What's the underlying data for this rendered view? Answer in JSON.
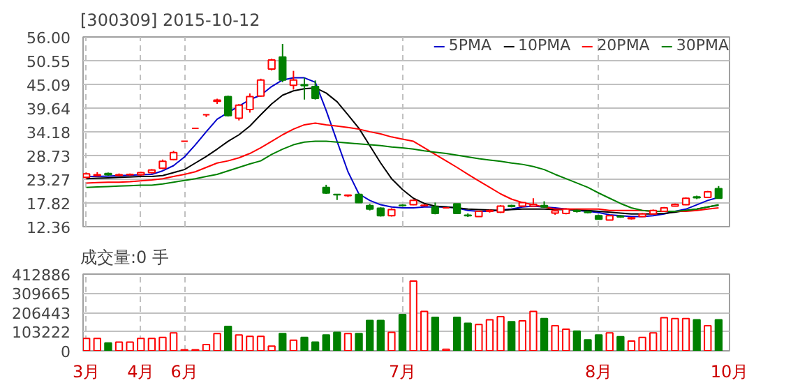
{
  "chart_data": [
    {
      "type": "candlestick",
      "title": "[300309] 2015-10-12",
      "ohlc": [
        [
          23.7,
          24.8,
          23.4,
          24.5
        ],
        [
          24.1,
          24.9,
          23.9,
          24.3
        ],
        [
          24.6,
          24.8,
          24.1,
          24.3
        ],
        [
          24.2,
          24.6,
          24.0,
          24.3
        ],
        [
          24.3,
          24.6,
          24.1,
          24.4
        ],
        [
          24.3,
          25.0,
          24.1,
          24.8
        ],
        [
          24.8,
          25.6,
          24.6,
          25.4
        ],
        [
          25.8,
          27.8,
          25.6,
          27.4
        ],
        [
          27.8,
          29.8,
          27.6,
          29.4
        ],
        [
          32.0,
          32.0,
          32.0,
          32.0
        ],
        [
          35.0,
          35.0,
          35.0,
          35.0
        ],
        [
          38.1,
          38.1,
          37.6,
          38.1
        ],
        [
          41.2,
          41.8,
          40.6,
          41.5
        ],
        [
          42.3,
          42.5,
          37.7,
          37.9
        ],
        [
          37.3,
          40.6,
          36.8,
          40.3
        ],
        [
          39.3,
          43.0,
          38.6,
          42.3
        ],
        [
          42.4,
          46.4,
          42.2,
          46.1
        ],
        [
          48.6,
          51.0,
          48.3,
          50.7
        ],
        [
          51.4,
          54.4,
          45.6,
          46.1
        ],
        [
          44.9,
          48.2,
          43.9,
          46.1
        ],
        [
          45.0,
          46.6,
          41.6,
          44.8
        ],
        [
          44.6,
          46.0,
          41.6,
          41.9
        ],
        [
          21.4,
          22.0,
          19.9,
          20.1
        ],
        [
          19.8,
          19.9,
          18.5,
          19.7
        ],
        [
          19.5,
          19.7,
          19.2,
          19.6
        ],
        [
          19.8,
          20.0,
          17.8,
          17.9
        ],
        [
          17.2,
          17.6,
          16.1,
          16.4
        ],
        [
          16.6,
          16.8,
          14.7,
          14.9
        ],
        [
          14.9,
          16.6,
          14.7,
          16.3
        ],
        [
          17.3,
          17.5,
          17.0,
          17.2
        ],
        [
          17.4,
          18.6,
          17.3,
          18.4
        ],
        [
          17.2,
          17.5,
          17.0,
          17.3
        ],
        [
          16.9,
          17.9,
          15.2,
          15.4
        ],
        [
          16.7,
          16.7,
          16.7,
          16.7
        ],
        [
          17.6,
          17.6,
          15.3,
          15.4
        ],
        [
          15.0,
          15.4,
          14.6,
          14.9
        ],
        [
          14.7,
          16.0,
          14.6,
          15.9
        ],
        [
          15.9,
          16.3,
          15.6,
          16.1
        ],
        [
          15.7,
          17.3,
          15.5,
          17.1
        ],
        [
          17.2,
          17.4,
          16.8,
          17.0
        ],
        [
          17.1,
          18.0,
          16.9,
          17.9
        ],
        [
          17.1,
          18.9,
          17.0,
          17.5
        ],
        [
          17.2,
          18.2,
          16.7,
          16.9
        ],
        [
          15.5,
          16.2,
          15.1,
          16.0
        ],
        [
          15.4,
          16.6,
          15.2,
          16.4
        ],
        [
          16.1,
          16.3,
          15.6,
          15.9
        ],
        [
          15.8,
          16.0,
          15.4,
          15.6
        ],
        [
          14.9,
          15.1,
          14.0,
          14.1
        ],
        [
          13.9,
          15.0,
          13.8,
          14.9
        ],
        [
          14.8,
          15.0,
          14.4,
          14.6
        ],
        [
          14.2,
          14.6,
          14.0,
          14.4
        ],
        [
          14.7,
          15.5,
          14.6,
          15.3
        ],
        [
          15.3,
          16.3,
          15.2,
          16.1
        ],
        [
          15.9,
          16.9,
          15.8,
          16.7
        ],
        [
          17.1,
          17.7,
          17.0,
          17.5
        ],
        [
          17.4,
          19.1,
          17.3,
          18.9
        ],
        [
          19.2,
          19.5,
          18.7,
          19.0
        ],
        [
          19.1,
          20.6,
          19.0,
          20.4
        ],
        [
          21.1,
          21.7,
          18.8,
          18.9
        ],
        null
      ],
      "colors": [
        "#ff0000",
        "#ff0000",
        "#008000",
        "#ff0000",
        "#ff0000",
        "#ff0000",
        "#ff0000",
        "#ff0000",
        "#ff0000",
        "#ff0000",
        "#ff0000",
        "#ff0000",
        "#ff0000",
        "#008000",
        "#ff0000",
        "#ff0000",
        "#ff0000",
        "#ff0000",
        "#008000",
        "#ff0000",
        "#008000",
        "#008000",
        "#008000",
        "#008000",
        "#ff0000",
        "#008000",
        "#008000",
        "#008000",
        "#ff0000",
        "#008000",
        "#ff0000",
        "#ff0000",
        "#008000",
        "#ff0000",
        "#008000",
        "#008000",
        "#ff0000",
        "#ff0000",
        "#ff0000",
        "#008000",
        "#ff0000",
        "#ff0000",
        "#008000",
        "#ff0000",
        "#ff0000",
        "#008000",
        "#008000",
        "#008000",
        "#ff0000",
        "#008000",
        "#ff0000",
        "#ff0000",
        "#ff0000",
        "#ff0000",
        "#ff0000",
        "#ff0000",
        "#008000",
        "#ff0000",
        "#008000",
        null
      ],
      "series": [
        {
          "name": "5PMA",
          "type": "line",
          "color": "#0000cc",
          "values": [
            23.9,
            23.9,
            24.0,
            24.1,
            24.2,
            24.3,
            24.4,
            25.2,
            26.4,
            28.4,
            31.2,
            34.2,
            37.1,
            38.6,
            40.1,
            41.6,
            42.6,
            44.6,
            46.1,
            46.6,
            46.6,
            45.6,
            39.1,
            32.0,
            25.0,
            19.9,
            18.4,
            17.4,
            16.9,
            16.7,
            16.7,
            16.9,
            16.9,
            16.9,
            16.7,
            16.1,
            15.9,
            15.9,
            16.2,
            16.4,
            16.9,
            17.1,
            16.9,
            16.7,
            16.4,
            16.1,
            15.9,
            15.6,
            15.1,
            14.9,
            14.7,
            14.7,
            14.9,
            15.3,
            15.9,
            16.4,
            17.4,
            18.4,
            19.1,
            null
          ]
        },
        {
          "name": "10PMA",
          "type": "line",
          "color": "#000000",
          "values": [
            23.4,
            23.5,
            23.6,
            23.7,
            23.8,
            23.9,
            23.9,
            24.1,
            24.8,
            25.5,
            27.0,
            28.5,
            30.2,
            32.0,
            33.5,
            35.5,
            38.1,
            40.6,
            42.6,
            43.6,
            44.1,
            44.3,
            43.1,
            41.1,
            38.1,
            35.0,
            31.0,
            27.0,
            23.4,
            20.9,
            18.9,
            17.7,
            17.1,
            16.9,
            16.7,
            16.4,
            16.3,
            16.2,
            16.1,
            16.3,
            16.4,
            16.4,
            16.4,
            16.3,
            16.3,
            16.2,
            16.1,
            15.9,
            15.7,
            15.5,
            15.3,
            15.3,
            15.3,
            15.4,
            15.7,
            16.1,
            16.4,
            16.9,
            17.3,
            null
          ]
        },
        {
          "name": "20PMA",
          "type": "line",
          "color": "#ff0000",
          "values": [
            22.4,
            22.5,
            22.6,
            22.6,
            22.7,
            22.9,
            23.1,
            23.4,
            23.9,
            24.4,
            25.0,
            26.0,
            27.0,
            27.5,
            28.2,
            29.2,
            30.5,
            32.0,
            33.5,
            34.8,
            35.8,
            36.2,
            35.8,
            35.5,
            35.2,
            34.8,
            34.2,
            33.7,
            33.0,
            32.5,
            32.0,
            30.5,
            29.0,
            27.5,
            26.0,
            24.4,
            22.9,
            21.4,
            19.9,
            18.7,
            17.9,
            17.4,
            16.9,
            16.4,
            16.4,
            16.4,
            16.4,
            16.4,
            16.1,
            16.1,
            16.1,
            16.1,
            15.9,
            15.9,
            15.9,
            15.9,
            16.1,
            16.4,
            16.7,
            null
          ]
        },
        {
          "name": "30PMA",
          "type": "line",
          "color": "#008000",
          "values": [
            21.4,
            21.5,
            21.6,
            21.7,
            21.8,
            21.9,
            21.9,
            22.2,
            22.6,
            23.0,
            23.4,
            23.9,
            24.4,
            25.2,
            26.0,
            26.8,
            27.5,
            29.0,
            30.2,
            31.2,
            31.8,
            32.0,
            32.0,
            31.8,
            31.6,
            31.4,
            31.2,
            31.0,
            30.7,
            30.5,
            30.2,
            29.8,
            29.5,
            29.2,
            28.8,
            28.4,
            28.0,
            27.7,
            27.4,
            27.0,
            26.7,
            26.2,
            25.5,
            24.4,
            23.4,
            22.4,
            21.4,
            20.1,
            18.9,
            17.7,
            16.7,
            16.1,
            15.9,
            15.9,
            15.9,
            16.1,
            16.4,
            16.9,
            17.4,
            null
          ]
        }
      ],
      "ylim": [
        12.36,
        56.0
      ],
      "yticks": [
        12.36,
        17.82,
        23.27,
        28.73,
        34.18,
        39.64,
        45.09,
        50.55,
        {
          "value": 56.0,
          "label": "56.00"
        }
      ],
      "grid": true,
      "legend": "top right"
    },
    {
      "type": "bar",
      "title": "成交量:0 手",
      "categories": [
        "3月",
        null,
        null,
        null,
        null,
        "4月",
        null,
        null,
        null,
        "6月",
        null,
        null,
        null,
        null,
        null,
        null,
        null,
        null,
        null,
        null,
        null,
        null,
        null,
        null,
        null,
        null,
        null,
        null,
        null,
        "7月",
        null,
        null,
        null,
        null,
        null,
        null,
        null,
        null,
        null,
        null,
        null,
        null,
        null,
        null,
        null,
        null,
        null,
        "8月",
        null,
        null,
        null,
        null,
        null,
        null,
        null,
        null,
        null,
        null,
        null,
        "10月"
      ],
      "values": [
        67000,
        67000,
        42000,
        47000,
        47000,
        67000,
        67000,
        72000,
        97000,
        6000,
        6000,
        34000,
        93000,
        131000,
        85000,
        78000,
        78000,
        25000,
        93000,
        57000,
        72000,
        47000,
        85000,
        99000,
        93000,
        93000,
        163000,
        163000,
        99000,
        195000,
        375000,
        212000,
        180000,
        8000,
        180000,
        148000,
        142000,
        167000,
        184000,
        157000,
        161000,
        212000,
        174000,
        135000,
        116000,
        106000,
        59000,
        85000,
        97000,
        76000,
        53000,
        72000,
        97000,
        178000,
        174000,
        174000,
        167000,
        135000,
        167000,
        null
      ],
      "colors": [
        "#ff0000",
        "#ff0000",
        "#008000",
        "#ff0000",
        "#ff0000",
        "#ff0000",
        "#ff0000",
        "#ff0000",
        "#ff0000",
        "#ff0000",
        "#ff0000",
        "#ff0000",
        "#ff0000",
        "#008000",
        "#ff0000",
        "#ff0000",
        "#ff0000",
        "#ff0000",
        "#008000",
        "#ff0000",
        "#008000",
        "#008000",
        "#008000",
        "#008000",
        "#ff0000",
        "#008000",
        "#008000",
        "#008000",
        "#ff0000",
        "#008000",
        "#ff0000",
        "#ff0000",
        "#008000",
        "#ff0000",
        "#008000",
        "#008000",
        "#ff0000",
        "#ff0000",
        "#ff0000",
        "#008000",
        "#ff0000",
        "#ff0000",
        "#008000",
        "#ff0000",
        "#ff0000",
        "#008000",
        "#008000",
        "#008000",
        "#ff0000",
        "#008000",
        "#ff0000",
        "#ff0000",
        "#ff0000",
        "#ff0000",
        "#ff0000",
        "#ff0000",
        "#008000",
        "#ff0000",
        "#008000",
        null
      ],
      "ylim": [
        0,
        412886
      ],
      "yticks": [
        0,
        103222,
        206443,
        309665,
        412886
      ],
      "grid": true
    }
  ]
}
